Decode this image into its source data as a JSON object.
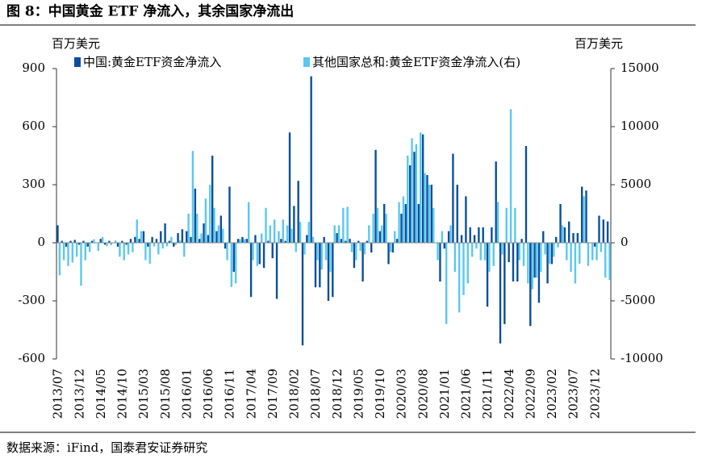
{
  "chart_data": {
    "type": "bar",
    "title": "图 8：中国黄金 ETF 净流入，其余国家净流出",
    "y_axis_label": "百万美元",
    "y2_axis_label": "百万美元",
    "source": "数据来源：iFind，国泰君安证券研究",
    "categories": [
      "2013/07",
      null,
      null,
      null,
      null,
      "2013/12",
      null,
      null,
      null,
      null,
      "2014/05",
      null,
      null,
      null,
      null,
      "2014/10",
      null,
      null,
      null,
      null,
      "2015/03",
      null,
      null,
      null,
      null,
      "2015/08",
      null,
      null,
      null,
      null,
      "2016/01",
      null,
      null,
      null,
      null,
      "2016/06",
      null,
      null,
      null,
      null,
      "2016/11",
      null,
      null,
      null,
      null,
      "2017/04",
      null,
      null,
      null,
      null,
      "2017/09",
      null,
      null,
      null,
      null,
      "2018/02",
      null,
      null,
      null,
      null,
      "2018/07",
      null,
      null,
      null,
      null,
      "2018/12",
      null,
      null,
      null,
      null,
      "2019/05",
      null,
      null,
      null,
      null,
      "2019/10",
      null,
      null,
      null,
      null,
      "2020/03",
      null,
      null,
      null,
      null,
      "2020/08",
      null,
      null,
      null,
      null,
      "2021/01",
      null,
      null,
      null,
      null,
      "2021/06",
      null,
      null,
      null,
      null,
      "2021/11",
      null,
      null,
      null,
      null,
      "2022/04",
      null,
      null,
      null,
      null,
      "2022/09",
      null,
      null,
      null,
      null,
      "2023/02",
      null,
      null,
      null,
      null,
      "2023/07",
      null,
      null,
      null,
      null,
      "2023/12",
      null,
      null,
      null
    ],
    "series": [
      {
        "name": "中国:黄金ETF资金净流入",
        "color": "#0b4f9c",
        "axis": "y",
        "values": [
          90,
          10,
          -20,
          10,
          15,
          -10,
          10,
          -20,
          10,
          0,
          20,
          -10,
          10,
          0,
          -20,
          10,
          -10,
          20,
          30,
          20,
          60,
          -20,
          30,
          20,
          60,
          100,
          10,
          -20,
          50,
          70,
          60,
          30,
          280,
          20,
          100,
          40,
          450,
          60,
          140,
          -30,
          290,
          -150,
          20,
          30,
          20,
          -280,
          40,
          -110,
          -130,
          10,
          -80,
          -290,
          20,
          10,
          570,
          190,
          320,
          -530,
          40,
          860,
          -230,
          -230,
          30,
          -300,
          -280,
          50,
          20,
          10,
          20,
          -130,
          10,
          -200,
          10,
          -50,
          480,
          60,
          200,
          -110,
          -50,
          20,
          150,
          200,
          400,
          470,
          200,
          560,
          350,
          300,
          0,
          -200,
          -30,
          60,
          460,
          300,
          40,
          240,
          80,
          40,
          80,
          80,
          -330,
          80,
          420,
          -520,
          -420,
          -100,
          -200,
          -200,
          20,
          500,
          -430,
          -180,
          -310,
          60,
          -210,
          -110,
          30,
          200,
          80,
          110,
          50,
          50,
          290,
          270,
          0,
          -20,
          140,
          120,
          110
        ]
      },
      {
        "name": "其他国家总和:黄金ETF资金净流入(右)",
        "color": "#5ac8f0",
        "axis": "y2",
        "values": [
          -2800,
          -1500,
          -2000,
          -1700,
          -1200,
          -3700,
          -1500,
          -800,
          300,
          -700,
          500,
          -300,
          -200,
          200,
          -1200,
          -1500,
          -1000,
          -800,
          2000,
          1000,
          -1500,
          -1800,
          -300,
          -1000,
          -500,
          -300,
          500,
          -200,
          200,
          -1200,
          2500,
          7900,
          2500,
          800,
          3800,
          5000,
          3000,
          1500,
          1200,
          -1500,
          -3800,
          -3500,
          300,
          300,
          3500,
          -1500,
          -2000,
          800,
          3000,
          1500,
          2000,
          1000,
          2000,
          1500,
          1200,
          -800,
          1800,
          -1000,
          1800,
          500,
          -1500,
          -2300,
          -1500,
          -2500,
          1500,
          1500,
          3000,
          3100,
          -800,
          -1500,
          -700,
          -1000,
          1500,
          2500,
          3000,
          1500,
          2500,
          -800,
          1000,
          3500,
          4000,
          7500,
          9000,
          8500,
          9500,
          6000,
          5000,
          3000,
          -1500,
          1000,
          -7000,
          1500,
          -2500,
          -6000,
          -4500,
          -3500,
          -1200,
          -500,
          -1500,
          -1500,
          -2500,
          -2000,
          3500,
          -1000,
          3000,
          11500,
          3000,
          -1500,
          -2000,
          -3500,
          -4000,
          -3000,
          -2500,
          -1000,
          -1800,
          -1200,
          -400,
          1500,
          -1500,
          -2500,
          -3500,
          -1800,
          4000,
          -2000,
          -1500,
          -1500,
          -800,
          -3000,
          -3200
        ]
      }
    ],
    "ylim": [
      -600,
      900
    ],
    "yticks": [
      -600,
      -300,
      0,
      300,
      600,
      900
    ],
    "y2lim": [
      -10000,
      15000
    ],
    "y2ticks": [
      -10000,
      -5000,
      0,
      5000,
      10000,
      15000
    ],
    "legend": "top"
  }
}
